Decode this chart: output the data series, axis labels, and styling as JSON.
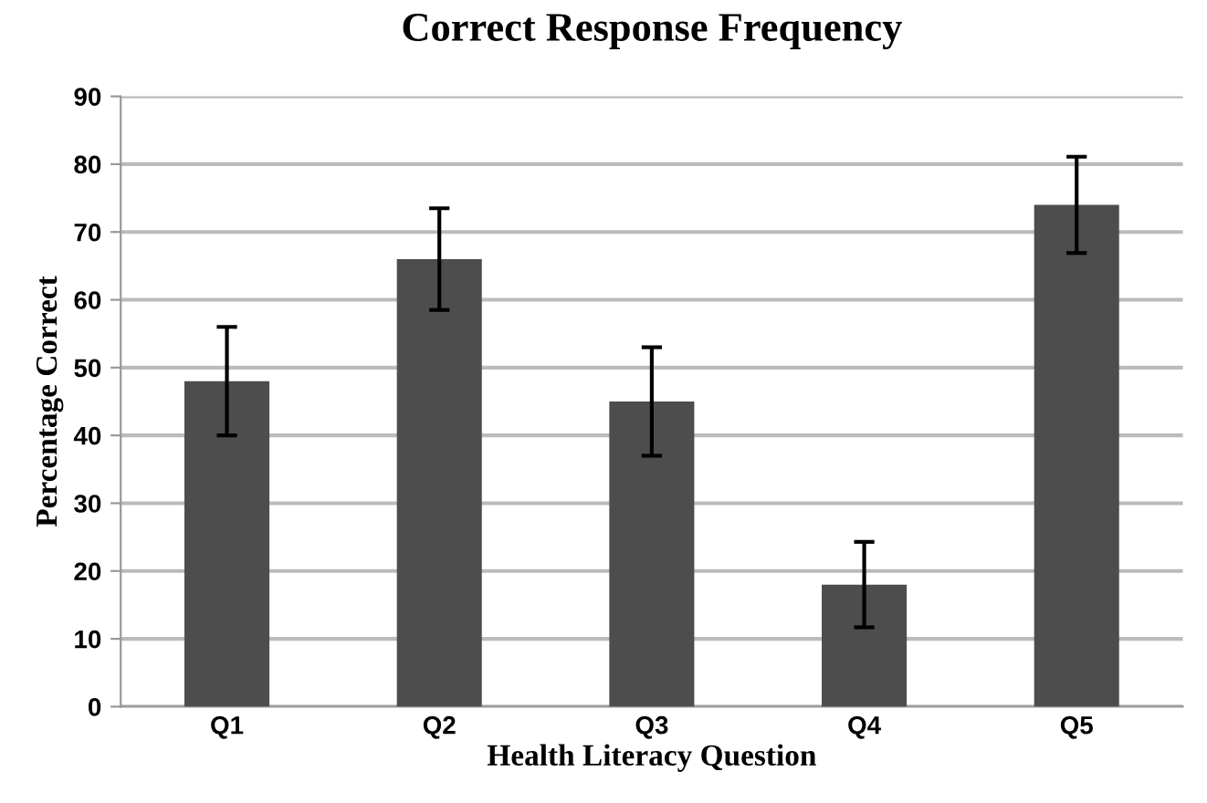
{
  "chart_data": {
    "type": "bar",
    "title": "Correct Response Frequency",
    "xlabel": "Health Literacy Question",
    "ylabel": "Percentage Correct",
    "categories": [
      "Q1",
      "Q2",
      "Q3",
      "Q4",
      "Q5"
    ],
    "values": [
      48,
      66,
      45,
      18,
      74
    ],
    "errors": [
      8,
      7.5,
      8,
      6.3,
      7.1
    ],
    "color": "#4d4d4d",
    "ylim": [
      0,
      90
    ],
    "yticks": [
      0,
      10,
      20,
      30,
      40,
      50,
      60,
      70,
      80,
      90
    ],
    "grid": "y",
    "legend": false
  }
}
